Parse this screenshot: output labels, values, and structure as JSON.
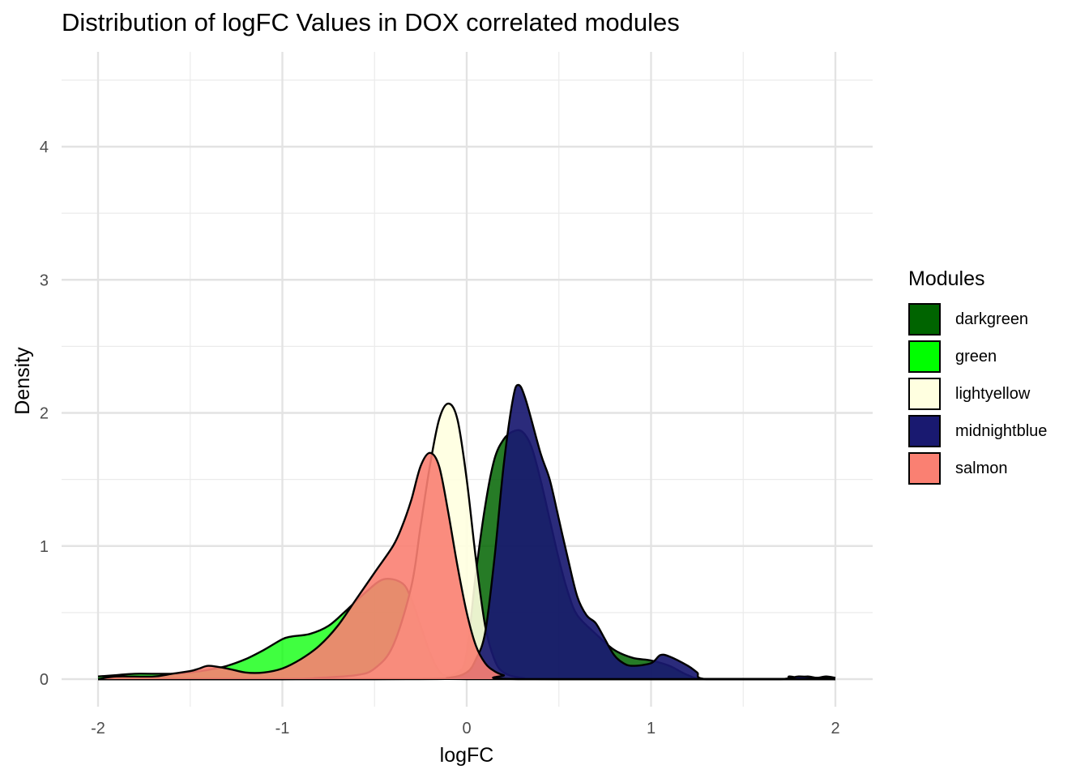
{
  "chart_data": {
    "type": "area",
    "subtype": "density",
    "title": "Distribution of logFC Values in DOX correlated modules",
    "xlabel": "logFC",
    "ylabel": "Density",
    "xlim": [
      -2.0,
      2.0
    ],
    "ylim": [
      0,
      4.5
    ],
    "x_ticks": [
      -2,
      -1,
      0,
      1,
      2
    ],
    "y_ticks": [
      0,
      1,
      2,
      3,
      4
    ],
    "x_tick_labels": [
      "-2",
      "-1",
      "0",
      "1",
      "2"
    ],
    "y_tick_labels": [
      "0",
      "1",
      "2",
      "3",
      "4"
    ],
    "grid": true,
    "legend": {
      "title": "Modules",
      "position": "right"
    },
    "series": [
      {
        "name": "darkgreen",
        "color": "#006400",
        "opacity": 0.85,
        "points": [
          [
            -2.0,
            0.0
          ],
          [
            -0.5,
            0.0
          ],
          [
            -0.2,
            0.01
          ],
          [
            -0.05,
            0.05
          ],
          [
            0.0,
            0.2
          ],
          [
            0.05,
            0.8
          ],
          [
            0.1,
            1.3
          ],
          [
            0.15,
            1.65
          ],
          [
            0.2,
            1.8
          ],
          [
            0.25,
            1.86
          ],
          [
            0.3,
            1.86
          ],
          [
            0.35,
            1.75
          ],
          [
            0.4,
            1.5
          ],
          [
            0.45,
            1.2
          ],
          [
            0.5,
            0.9
          ],
          [
            0.55,
            0.65
          ],
          [
            0.6,
            0.48
          ],
          [
            0.7,
            0.34
          ],
          [
            0.8,
            0.22
          ],
          [
            0.9,
            0.16
          ],
          [
            1.0,
            0.14
          ],
          [
            1.1,
            0.1
          ],
          [
            1.2,
            0.03
          ],
          [
            1.3,
            0.0
          ],
          [
            1.7,
            0.0
          ],
          [
            1.75,
            0.02
          ],
          [
            1.8,
            0.01
          ],
          [
            1.85,
            0.02
          ],
          [
            1.9,
            0.01
          ],
          [
            1.95,
            0.02
          ],
          [
            2.0,
            0.01
          ]
        ]
      },
      {
        "name": "green",
        "color": "#00FF00",
        "opacity": 0.75,
        "points": [
          [
            -2.0,
            0.02
          ],
          [
            -1.9,
            0.03
          ],
          [
            -1.8,
            0.04
          ],
          [
            -1.6,
            0.04
          ],
          [
            -1.5,
            0.05
          ],
          [
            -1.4,
            0.07
          ],
          [
            -1.3,
            0.1
          ],
          [
            -1.2,
            0.15
          ],
          [
            -1.1,
            0.22
          ],
          [
            -1.0,
            0.3
          ],
          [
            -0.95,
            0.32
          ],
          [
            -0.85,
            0.34
          ],
          [
            -0.75,
            0.4
          ],
          [
            -0.65,
            0.52
          ],
          [
            -0.55,
            0.65
          ],
          [
            -0.45,
            0.75
          ],
          [
            -0.35,
            0.72
          ],
          [
            -0.3,
            0.6
          ],
          [
            -0.25,
            0.4
          ],
          [
            -0.2,
            0.2
          ],
          [
            -0.15,
            0.06
          ],
          [
            -0.1,
            0.02
          ],
          [
            0.0,
            0.0
          ],
          [
            2.0,
            0.0
          ]
        ]
      },
      {
        "name": "lightyellow",
        "color": "#FFFFE0",
        "opacity": 0.9,
        "points": [
          [
            -2.0,
            0.0
          ],
          [
            -1.0,
            0.0
          ],
          [
            -0.8,
            0.01
          ],
          [
            -0.6,
            0.03
          ],
          [
            -0.5,
            0.08
          ],
          [
            -0.4,
            0.25
          ],
          [
            -0.3,
            0.7
          ],
          [
            -0.25,
            1.15
          ],
          [
            -0.2,
            1.6
          ],
          [
            -0.15,
            1.95
          ],
          [
            -0.1,
            2.07
          ],
          [
            -0.05,
            1.95
          ],
          [
            0.0,
            1.5
          ],
          [
            0.05,
            0.9
          ],
          [
            0.1,
            0.4
          ],
          [
            0.15,
            0.15
          ],
          [
            0.2,
            0.05
          ],
          [
            0.3,
            0.01
          ],
          [
            0.5,
            0.0
          ],
          [
            2.0,
            0.0
          ]
        ]
      },
      {
        "name": "midnightblue",
        "color": "#191970",
        "opacity": 0.92,
        "points": [
          [
            -2.0,
            0.0
          ],
          [
            -0.3,
            0.0
          ],
          [
            -0.1,
            0.01
          ],
          [
            0.0,
            0.05
          ],
          [
            0.05,
            0.15
          ],
          [
            0.1,
            0.35
          ],
          [
            0.15,
            0.9
          ],
          [
            0.2,
            1.6
          ],
          [
            0.25,
            2.1
          ],
          [
            0.28,
            2.21
          ],
          [
            0.32,
            2.1
          ],
          [
            0.4,
            1.7
          ],
          [
            0.45,
            1.5
          ],
          [
            0.5,
            1.2
          ],
          [
            0.55,
            0.9
          ],
          [
            0.6,
            0.62
          ],
          [
            0.65,
            0.48
          ],
          [
            0.7,
            0.42
          ],
          [
            0.75,
            0.3
          ],
          [
            0.8,
            0.18
          ],
          [
            0.85,
            0.12
          ],
          [
            0.9,
            0.1
          ],
          [
            1.0,
            0.12
          ],
          [
            1.05,
            0.18
          ],
          [
            1.1,
            0.17
          ],
          [
            1.2,
            0.1
          ],
          [
            1.25,
            0.05
          ],
          [
            1.3,
            0.0
          ],
          [
            1.7,
            0.0
          ],
          [
            1.8,
            0.02
          ],
          [
            1.9,
            0.01
          ],
          [
            2.0,
            0.0
          ]
        ]
      },
      {
        "name": "salmon",
        "color": "#FA8072",
        "opacity": 0.9,
        "points": [
          [
            -2.0,
            0.0
          ],
          [
            -1.9,
            0.02
          ],
          [
            -1.7,
            0.02
          ],
          [
            -1.6,
            0.04
          ],
          [
            -1.5,
            0.06
          ],
          [
            -1.45,
            0.08
          ],
          [
            -1.4,
            0.1
          ],
          [
            -1.3,
            0.08
          ],
          [
            -1.2,
            0.05
          ],
          [
            -1.1,
            0.05
          ],
          [
            -1.0,
            0.08
          ],
          [
            -0.9,
            0.15
          ],
          [
            -0.8,
            0.25
          ],
          [
            -0.7,
            0.4
          ],
          [
            -0.6,
            0.6
          ],
          [
            -0.5,
            0.8
          ],
          [
            -0.4,
            1.0
          ],
          [
            -0.35,
            1.15
          ],
          [
            -0.3,
            1.35
          ],
          [
            -0.25,
            1.6
          ],
          [
            -0.2,
            1.7
          ],
          [
            -0.15,
            1.6
          ],
          [
            -0.1,
            1.25
          ],
          [
            -0.05,
            0.85
          ],
          [
            0.0,
            0.5
          ],
          [
            0.05,
            0.25
          ],
          [
            0.1,
            0.12
          ],
          [
            0.15,
            0.06
          ],
          [
            0.2,
            0.03
          ],
          [
            0.3,
            0.0
          ],
          [
            2.0,
            0.0
          ]
        ]
      }
    ]
  }
}
